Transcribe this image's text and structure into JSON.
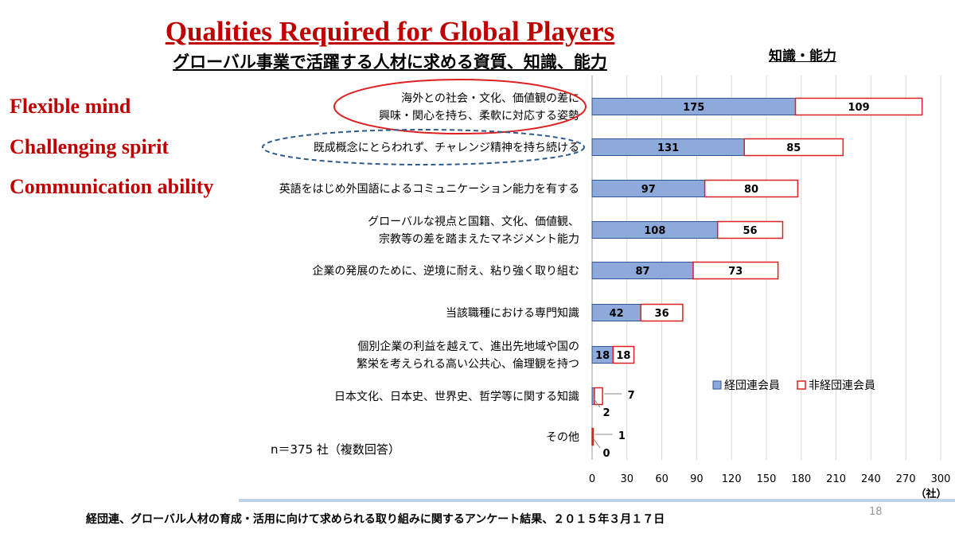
{
  "slide": {
    "title": "Qualities Required for Global Players",
    "subtitle": "グローバル事業で活躍する人材に求める資質、知識、能力",
    "unit_label": "知識・能力",
    "side_labels": [
      "Flexible mind",
      "Challenging spirit",
      "Communication ability"
    ],
    "sample_note": "n＝375 社（複数回答）",
    "source": "経団連、グローバル人材の育成・活用に向けて求められる取り組みに関するアンケート結果、２０１５年３月１７日",
    "slide_number": "18"
  },
  "colors": {
    "title": "#c00000",
    "series1_fill": "#8eaadb",
    "series1_stroke": "#2f5597",
    "series2_fill": "#ffffff",
    "series2_stroke": "#e02020",
    "highlight_solid": "#e02020",
    "highlight_dashed": "#2e5b8a",
    "grid": "#d9d9d9"
  },
  "chart_data": {
    "type": "bar",
    "orientation": "horizontal",
    "stacked": true,
    "categories": [
      [
        "海外との社会・文化、価値観の差に",
        "興味・関心を持ち、柔軟に対応する姿勢"
      ],
      [
        "既成概念にとらわれず、チャレンジ精神を持ち続ける"
      ],
      [
        "英語をはじめ外国語によるコミュニケーション能力を有する"
      ],
      [
        "グローバルな視点と国籍、文化、価値観、",
        "宗教等の差を踏まえたマネジメント能力"
      ],
      [
        "企業の発展のために、逆境に耐え、粘り強く取り組む"
      ],
      [
        "当該職種における専門知識"
      ],
      [
        "個別企業の利益を越えて、進出先地域や国の",
        "繁栄を考えられる高い公共心、倫理観を持つ"
      ],
      [
        "日本文化、日本史、世界史、哲学等に関する知識"
      ],
      [
        "その他"
      ]
    ],
    "series": [
      {
        "name": "経団連会員",
        "values": [
          175,
          131,
          97,
          108,
          87,
          42,
          18,
          2,
          0
        ]
      },
      {
        "name": "非経団連会員",
        "values": [
          109,
          85,
          80,
          56,
          73,
          36,
          18,
          7,
          1
        ]
      }
    ],
    "x_ticks": [
      "0",
      "30",
      "60",
      "90",
      "120",
      "150",
      "180",
      "210",
      "240",
      "270",
      "300"
    ],
    "x_unit": "（社）",
    "xlim": [
      0,
      300
    ],
    "legend_position": "lower-right",
    "grid": true
  }
}
